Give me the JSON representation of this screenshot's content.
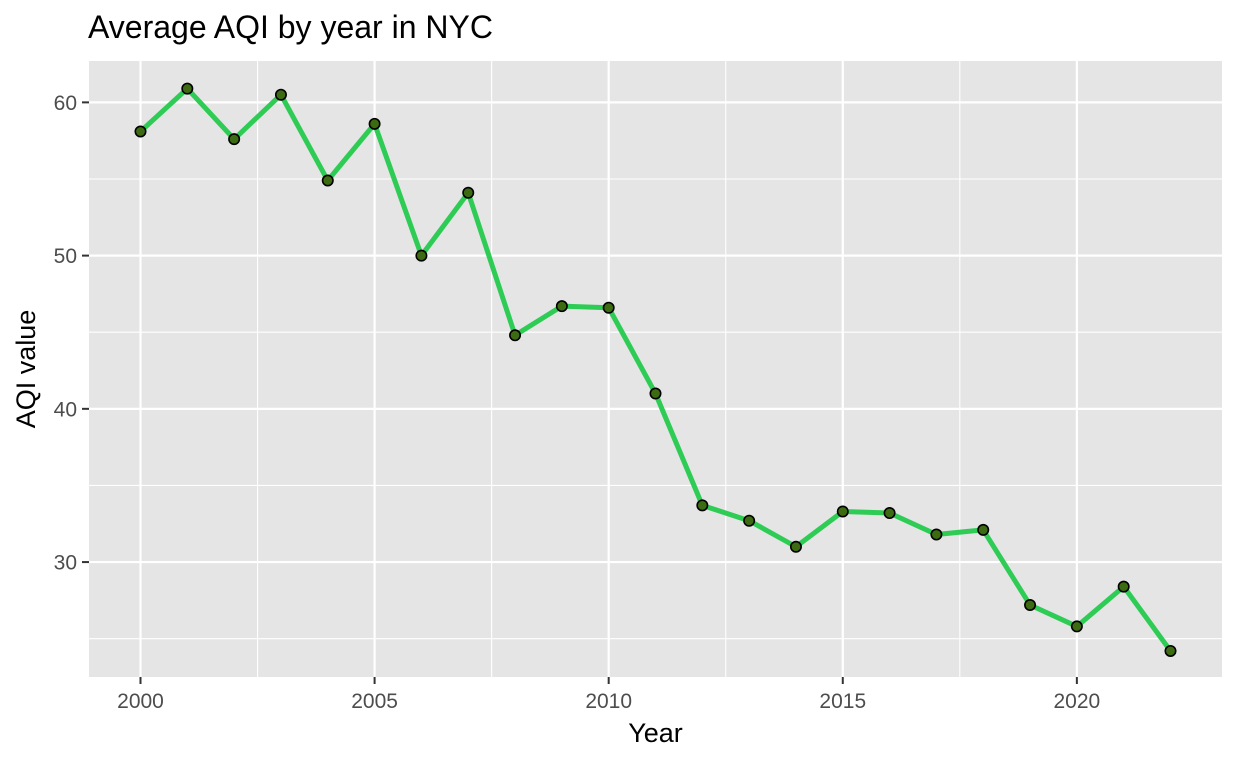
{
  "chart_data": {
    "type": "line",
    "title": "Average AQI by year in NYC",
    "xlabel": "Year",
    "ylabel": "AQI value",
    "x": [
      2000,
      2001,
      2002,
      2003,
      2004,
      2005,
      2006,
      2007,
      2008,
      2009,
      2010,
      2011,
      2012,
      2013,
      2014,
      2015,
      2016,
      2017,
      2018,
      2019,
      2020,
      2021,
      2022
    ],
    "series": [
      {
        "values": [
          58.1,
          60.9,
          57.6,
          60.5,
          54.9,
          58.6,
          50.0,
          54.1,
          44.8,
          46.7,
          46.6,
          41.0,
          33.7,
          32.7,
          31.0,
          33.3,
          33.2,
          31.8,
          32.1,
          27.2,
          25.8,
          28.4,
          24.2
        ]
      }
    ],
    "xlim": [
      1998.9,
      2023.1
    ],
    "ylim": [
      22.5,
      62.7
    ],
    "x_ticks": [
      2000,
      2005,
      2010,
      2015,
      2020
    ],
    "x_tick_labels": [
      "2000",
      "2005",
      "2010",
      "2015",
      "2020"
    ],
    "y_ticks": [
      30,
      40,
      50,
      60
    ],
    "y_tick_labels": [
      "30",
      "40",
      "50",
      "60"
    ],
    "grid": true,
    "legend": "none",
    "colors": {
      "panel_background": "#e5e5e5",
      "grid_major": "#ffffff",
      "line": "#2ecc55",
      "point_fill": "#3d6b12",
      "point_stroke": "#000000",
      "tick": "#333333",
      "tick_label": "#4d4d4d"
    }
  }
}
